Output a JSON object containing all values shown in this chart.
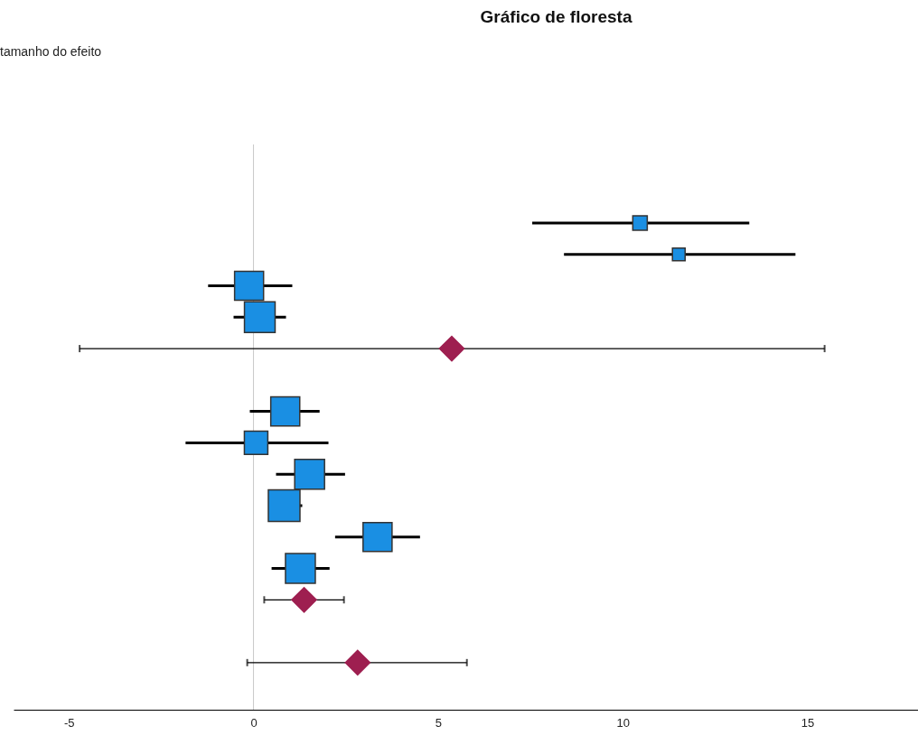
{
  "chart_data": {
    "title": "Gráfico de floresta",
    "annotations": [
      "tamanho do efeito"
    ],
    "type": "scatter",
    "orientation": "horizontal",
    "categories": [
      null,
      null,
      null,
      null,
      null,
      null,
      null,
      null,
      null,
      null,
      null,
      null,
      null,
      null,
      null,
      null,
      null,
      null
    ],
    "series": [
      {
        "type": "bubble",
        "marker": "square",
        "color": "#1a8fe3",
        "values": [
          null,
          null,
          10.47,
          11.52,
          -0.12,
          0.17,
          null,
          null,
          0.86,
          0.07,
          1.52,
          0.83,
          3.36,
          1.27,
          null,
          null,
          null,
          null
        ],
        "errors": [
          null,
          null,
          [
            7.55,
            13.43
          ],
          [
            8.41,
            14.68
          ],
          [
            -1.23,
            1.05
          ],
          [
            -0.54,
            0.88
          ],
          null,
          null,
          [
            -0.1,
            1.79
          ],
          [
            -1.84,
            2.03
          ],
          [
            0.61,
            2.48
          ],
          [
            0.42,
            1.32
          ],
          [
            2.21,
            4.51
          ],
          [
            0.49,
            2.06
          ],
          null,
          null,
          null,
          null
        ],
        "sizes": [
          null,
          null,
          0.21,
          0.16,
          0.84,
          0.94,
          null,
          null,
          0.84,
          0.55,
          0.89,
          1,
          0.84,
          0.89,
          null,
          null,
          null,
          null
        ]
      },
      {
        "marker": "diamond",
        "color": "#9e1f50",
        "values": [
          null,
          null,
          null,
          null,
          null,
          null,
          5.37,
          null,
          null,
          null,
          null,
          null,
          null,
          null,
          1.37,
          null,
          2.82,
          null
        ],
        "errors": [
          null,
          null,
          null,
          null,
          null,
          null,
          [
            -4.71,
            15.47
          ],
          null,
          null,
          null,
          null,
          null,
          null,
          null,
          [
            0.29,
            2.45
          ],
          null,
          [
            -0.17,
            5.78
          ],
          null
        ]
      }
    ],
    "xlim": [
      -6.5,
      18
    ],
    "xticks": [
      -5,
      0,
      5,
      10,
      15
    ],
    "ref_lines": [
      {
        "axis": "x",
        "value": 0,
        "color": "#c8c8c8"
      }
    ]
  }
}
